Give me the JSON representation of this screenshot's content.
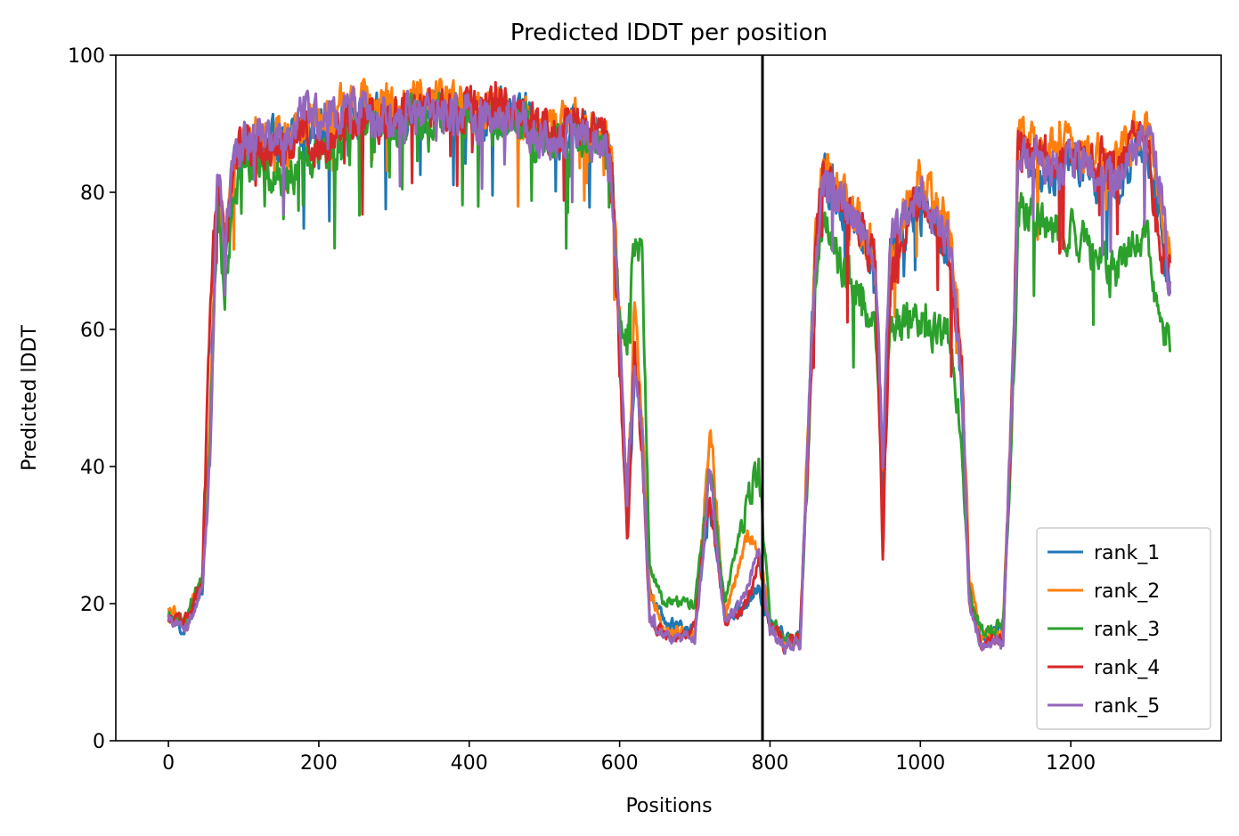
{
  "chart_data": {
    "type": "line",
    "title": "Predicted lDDT per position",
    "xlabel": "Positions",
    "ylabel": "Predicted lDDT",
    "xlim": [
      -70,
      1400
    ],
    "ylim": [
      0,
      100
    ],
    "xticks": [
      0,
      200,
      400,
      600,
      800,
      1000,
      1200
    ],
    "yticks": [
      0,
      20,
      40,
      60,
      80,
      100
    ],
    "grid": false,
    "legend_position": "lower-right",
    "vline": {
      "x": 790,
      "color": "#000000"
    },
    "n_positions": 1333,
    "series": [
      {
        "name": "rank_1",
        "color": "#1f77b4",
        "seed": 11,
        "keypoints": [
          [
            0,
            18
          ],
          [
            20,
            16
          ],
          [
            45,
            22
          ],
          [
            55,
            45
          ],
          [
            65,
            82
          ],
          [
            75,
            70
          ],
          [
            90,
            86
          ],
          [
            120,
            87
          ],
          [
            160,
            88
          ],
          [
            180,
            90
          ],
          [
            200,
            89
          ],
          [
            240,
            92
          ],
          [
            300,
            91
          ],
          [
            360,
            92
          ],
          [
            420,
            91
          ],
          [
            460,
            92
          ],
          [
            500,
            88
          ],
          [
            540,
            89
          ],
          [
            580,
            87
          ],
          [
            590,
            82
          ],
          [
            600,
            60
          ],
          [
            610,
            30
          ],
          [
            620,
            55
          ],
          [
            630,
            45
          ],
          [
            640,
            22
          ],
          [
            660,
            17
          ],
          [
            700,
            16
          ],
          [
            720,
            35
          ],
          [
            740,
            18
          ],
          [
            770,
            20
          ],
          [
            785,
            22
          ],
          [
            800,
            17
          ],
          [
            820,
            15
          ],
          [
            840,
            15
          ],
          [
            860,
            70
          ],
          [
            870,
            82
          ],
          [
            900,
            78
          ],
          [
            940,
            70
          ],
          [
            950,
            35
          ],
          [
            960,
            70
          ],
          [
            1000,
            80
          ],
          [
            1040,
            70
          ],
          [
            1055,
            50
          ],
          [
            1065,
            22
          ],
          [
            1080,
            15
          ],
          [
            1110,
            16
          ],
          [
            1125,
            60
          ],
          [
            1130,
            85
          ],
          [
            1160,
            82
          ],
          [
            1200,
            85
          ],
          [
            1260,
            80
          ],
          [
            1300,
            88
          ],
          [
            1320,
            75
          ],
          [
            1333,
            65
          ]
        ]
      },
      {
        "name": "rank_2",
        "color": "#ff7f0e",
        "seed": 23,
        "keypoints": [
          [
            0,
            20
          ],
          [
            20,
            17
          ],
          [
            45,
            23
          ],
          [
            55,
            46
          ],
          [
            65,
            83
          ],
          [
            75,
            72
          ],
          [
            90,
            87
          ],
          [
            120,
            88
          ],
          [
            160,
            89
          ],
          [
            180,
            91
          ],
          [
            200,
            90
          ],
          [
            240,
            93
          ],
          [
            300,
            93
          ],
          [
            360,
            93
          ],
          [
            420,
            92
          ],
          [
            460,
            92
          ],
          [
            500,
            89
          ],
          [
            540,
            90
          ],
          [
            580,
            88
          ],
          [
            590,
            83
          ],
          [
            600,
            61
          ],
          [
            610,
            32
          ],
          [
            620,
            62
          ],
          [
            630,
            48
          ],
          [
            640,
            22
          ],
          [
            660,
            16
          ],
          [
            700,
            16
          ],
          [
            720,
            45
          ],
          [
            740,
            18
          ],
          [
            770,
            30
          ],
          [
            785,
            28
          ],
          [
            800,
            17
          ],
          [
            820,
            15
          ],
          [
            840,
            15
          ],
          [
            860,
            72
          ],
          [
            870,
            84
          ],
          [
            900,
            80
          ],
          [
            940,
            72
          ],
          [
            950,
            38
          ],
          [
            960,
            72
          ],
          [
            1000,
            83
          ],
          [
            1040,
            74
          ],
          [
            1055,
            55
          ],
          [
            1065,
            24
          ],
          [
            1080,
            15
          ],
          [
            1110,
            16
          ],
          [
            1125,
            62
          ],
          [
            1130,
            88
          ],
          [
            1160,
            86
          ],
          [
            1200,
            87
          ],
          [
            1260,
            84
          ],
          [
            1300,
            90
          ],
          [
            1320,
            78
          ],
          [
            1333,
            70
          ]
        ]
      },
      {
        "name": "rank_3",
        "color": "#2ca02c",
        "seed": 37,
        "keypoints": [
          [
            0,
            18
          ],
          [
            20,
            17
          ],
          [
            45,
            24
          ],
          [
            55,
            42
          ],
          [
            65,
            78
          ],
          [
            75,
            66
          ],
          [
            90,
            84
          ],
          [
            120,
            83
          ],
          [
            160,
            82
          ],
          [
            180,
            86
          ],
          [
            200,
            83
          ],
          [
            240,
            88
          ],
          [
            300,
            90
          ],
          [
            360,
            91
          ],
          [
            420,
            90
          ],
          [
            460,
            91
          ],
          [
            500,
            87
          ],
          [
            540,
            88
          ],
          [
            580,
            86
          ],
          [
            590,
            80
          ],
          [
            600,
            62
          ],
          [
            610,
            58
          ],
          [
            620,
            75
          ],
          [
            630,
            70
          ],
          [
            640,
            25
          ],
          [
            660,
            20
          ],
          [
            700,
            20
          ],
          [
            720,
            40
          ],
          [
            740,
            20
          ],
          [
            770,
            35
          ],
          [
            785,
            40
          ],
          [
            800,
            18
          ],
          [
            820,
            15
          ],
          [
            840,
            15
          ],
          [
            860,
            65
          ],
          [
            870,
            75
          ],
          [
            900,
            68
          ],
          [
            940,
            62
          ],
          [
            950,
            40
          ],
          [
            960,
            60
          ],
          [
            1000,
            62
          ],
          [
            1040,
            58
          ],
          [
            1055,
            45
          ],
          [
            1065,
            22
          ],
          [
            1080,
            16
          ],
          [
            1110,
            17
          ],
          [
            1125,
            55
          ],
          [
            1130,
            78
          ],
          [
            1160,
            76
          ],
          [
            1200,
            74
          ],
          [
            1260,
            68
          ],
          [
            1300,
            75
          ],
          [
            1320,
            60
          ],
          [
            1333,
            58
          ]
        ]
      },
      {
        "name": "rank_4",
        "color": "#d62728",
        "seed": 53,
        "keypoints": [
          [
            0,
            18
          ],
          [
            20,
            17
          ],
          [
            45,
            23
          ],
          [
            55,
            60
          ],
          [
            65,
            82
          ],
          [
            75,
            72
          ],
          [
            90,
            87
          ],
          [
            120,
            87
          ],
          [
            160,
            87
          ],
          [
            180,
            89
          ],
          [
            200,
            86
          ],
          [
            240,
            90
          ],
          [
            300,
            92
          ],
          [
            360,
            92
          ],
          [
            420,
            92
          ],
          [
            460,
            92
          ],
          [
            500,
            89
          ],
          [
            540,
            89
          ],
          [
            580,
            88
          ],
          [
            590,
            82
          ],
          [
            600,
            55
          ],
          [
            610,
            28
          ],
          [
            620,
            58
          ],
          [
            630,
            42
          ],
          [
            640,
            18
          ],
          [
            660,
            15
          ],
          [
            700,
            16
          ],
          [
            720,
            38
          ],
          [
            740,
            17
          ],
          [
            770,
            20
          ],
          [
            785,
            26
          ],
          [
            800,
            17
          ],
          [
            820,
            14
          ],
          [
            840,
            15
          ],
          [
            860,
            70
          ],
          [
            870,
            82
          ],
          [
            900,
            78
          ],
          [
            940,
            70
          ],
          [
            950,
            28
          ],
          [
            960,
            68
          ],
          [
            1000,
            80
          ],
          [
            1040,
            70
          ],
          [
            1055,
            55
          ],
          [
            1065,
            20
          ],
          [
            1080,
            14
          ],
          [
            1110,
            15
          ],
          [
            1125,
            62
          ],
          [
            1130,
            88
          ],
          [
            1160,
            86
          ],
          [
            1200,
            85
          ],
          [
            1260,
            84
          ],
          [
            1300,
            89
          ],
          [
            1320,
            70
          ],
          [
            1333,
            68
          ]
        ]
      },
      {
        "name": "rank_5",
        "color": "#9467bd",
        "seed": 71,
        "keypoints": [
          [
            0,
            18
          ],
          [
            20,
            16
          ],
          [
            45,
            22
          ],
          [
            55,
            40
          ],
          [
            65,
            84
          ],
          [
            75,
            72
          ],
          [
            90,
            87
          ],
          [
            120,
            88
          ],
          [
            160,
            88
          ],
          [
            180,
            91
          ],
          [
            200,
            90
          ],
          [
            240,
            92
          ],
          [
            300,
            91
          ],
          [
            360,
            92
          ],
          [
            420,
            91
          ],
          [
            460,
            92
          ],
          [
            500,
            88
          ],
          [
            540,
            89
          ],
          [
            580,
            87
          ],
          [
            590,
            82
          ],
          [
            600,
            60
          ],
          [
            610,
            35
          ],
          [
            620,
            55
          ],
          [
            630,
            45
          ],
          [
            640,
            18
          ],
          [
            660,
            15
          ],
          [
            700,
            15
          ],
          [
            720,
            38
          ],
          [
            740,
            17
          ],
          [
            770,
            22
          ],
          [
            785,
            28
          ],
          [
            800,
            16
          ],
          [
            820,
            14
          ],
          [
            840,
            14
          ],
          [
            860,
            70
          ],
          [
            870,
            82
          ],
          [
            900,
            78
          ],
          [
            940,
            70
          ],
          [
            950,
            42
          ],
          [
            960,
            72
          ],
          [
            1000,
            80
          ],
          [
            1040,
            72
          ],
          [
            1055,
            52
          ],
          [
            1065,
            20
          ],
          [
            1080,
            14
          ],
          [
            1110,
            14
          ],
          [
            1125,
            62
          ],
          [
            1130,
            86
          ],
          [
            1160,
            84
          ],
          [
            1200,
            85
          ],
          [
            1260,
            82
          ],
          [
            1300,
            88
          ],
          [
            1320,
            80
          ],
          [
            1333,
            66
          ]
        ]
      }
    ]
  }
}
